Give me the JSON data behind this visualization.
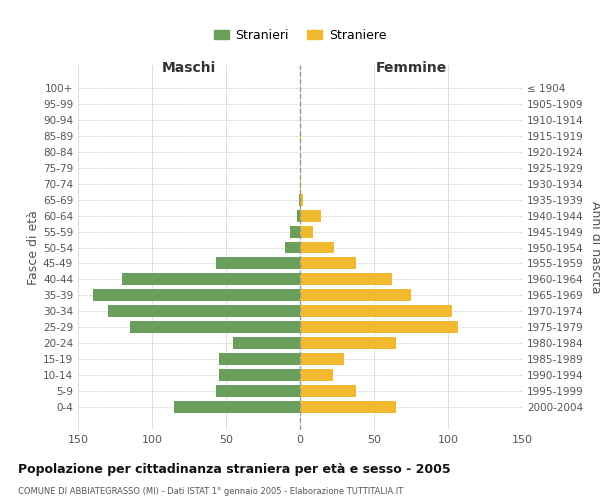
{
  "age_groups": [
    "0-4",
    "5-9",
    "10-14",
    "15-19",
    "20-24",
    "25-29",
    "30-34",
    "35-39",
    "40-44",
    "45-49",
    "50-54",
    "55-59",
    "60-64",
    "65-69",
    "70-74",
    "75-79",
    "80-84",
    "85-89",
    "90-94",
    "95-99",
    "100+"
  ],
  "birth_years": [
    "2000-2004",
    "1995-1999",
    "1990-1994",
    "1985-1989",
    "1980-1984",
    "1975-1979",
    "1970-1974",
    "1965-1969",
    "1960-1964",
    "1955-1959",
    "1950-1954",
    "1945-1949",
    "1940-1944",
    "1935-1939",
    "1930-1934",
    "1925-1929",
    "1920-1924",
    "1915-1919",
    "1910-1914",
    "1905-1909",
    "≤ 1904"
  ],
  "maschi": [
    85,
    57,
    55,
    55,
    45,
    115,
    130,
    140,
    120,
    57,
    10,
    7,
    2,
    1,
    0,
    0,
    0,
    0,
    0,
    0,
    0
  ],
  "femmine": [
    65,
    38,
    22,
    30,
    65,
    107,
    103,
    75,
    62,
    38,
    23,
    9,
    14,
    2,
    1,
    0,
    0,
    1,
    0,
    0,
    0
  ],
  "maschi_color": "#6a9f5b",
  "femmine_color": "#f0b930",
  "title": "Popolazione per cittadinanza straniera per età e sesso - 2005",
  "subtitle": "COMUNE DI ABBIATEGRASSO (MI) - Dati ISTAT 1° gennaio 2005 - Elaborazione TUTTITALIA.IT",
  "xlabel_left": "Maschi",
  "xlabel_right": "Femmine",
  "ylabel_left": "Fasce di età",
  "ylabel_right": "Anni di nascita",
  "legend_stranieri": "Stranieri",
  "legend_straniere": "Straniere",
  "xlim": 150,
  "background_color": "#ffffff",
  "grid_color": "#d0d0d0"
}
